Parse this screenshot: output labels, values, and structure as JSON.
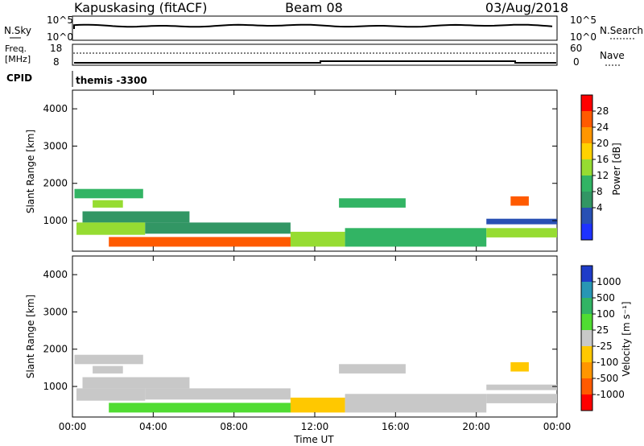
{
  "header": {
    "station": "Kapuskasing (fitACF)",
    "beam": "Beam 08",
    "date": "03/Aug/2018"
  },
  "noise_panel": {
    "left_label": "N.Sky",
    "right_label": "N.Search",
    "left_ticks": [
      "10^5",
      "10^0"
    ],
    "right_ticks": [
      "10^5",
      "10^0"
    ]
  },
  "freq_panel": {
    "left_label_1": "Freq.",
    "left_label_2": "[MHz]",
    "right_label": "Nave",
    "left_ticks": [
      "18",
      "8"
    ],
    "right_ticks": [
      "60",
      "0"
    ]
  },
  "cpid_panel": {
    "label": "CPID",
    "text": "themis -3300"
  },
  "x_axis": {
    "ticks": [
      "00:00",
      "04:00",
      "08:00",
      "12:00",
      "16:00",
      "20:00",
      "00:00"
    ],
    "label": "Time UT"
  },
  "y_axis": {
    "label": "Slant Range [km]",
    "ticks": [
      "1000",
      "2000",
      "3000",
      "4000"
    ]
  },
  "power_colorbar": {
    "title": "Power [dB]",
    "ticks": [
      "28",
      "24",
      "20",
      "16",
      "12",
      "8",
      "4"
    ],
    "colors": [
      "#ff0000",
      "#ff5a00",
      "#ff9600",
      "#ffd200",
      "#96dc32",
      "#32b464",
      "#329664",
      "#2850b4",
      "#1e32ff"
    ]
  },
  "velocity_colorbar": {
    "title": "Velocity [m s⁻¹]",
    "ticks": [
      "1000",
      "500",
      "100",
      "25",
      "-25",
      "-100",
      "-500",
      "-1000"
    ],
    "colors": [
      "#1e3cc8",
      "#2896b4",
      "#32b464",
      "#50dc32",
      "#c8c8c8",
      "#ffc800",
      "#ff9600",
      "#ff5a00",
      "#ff0000"
    ]
  },
  "chart_data": {
    "type": "heatmap",
    "x_range_hours": [
      0,
      24
    ],
    "y_range_km": [
      180,
      4500
    ],
    "panels": [
      {
        "name": "Power",
        "units": "dB",
        "scale": [
          0,
          30
        ],
        "regions": [
          {
            "t0": 0.1,
            "t1": 3.5,
            "r0": 1600,
            "r1": 1850,
            "value": 12
          },
          {
            "t0": 1.0,
            "t1": 2.5,
            "r0": 1350,
            "r1": 1550,
            "value": 16
          },
          {
            "t0": 0.5,
            "t1": 5.8,
            "r0": 950,
            "r1": 1250,
            "value": 8
          },
          {
            "t0": 0.2,
            "t1": 3.6,
            "r0": 620,
            "r1": 950,
            "value": 14
          },
          {
            "t0": 3.6,
            "t1": 10.8,
            "r0": 650,
            "r1": 950,
            "value": 8
          },
          {
            "t0": 1.8,
            "t1": 10.8,
            "r0": 300,
            "r1": 560,
            "value": 24
          },
          {
            "t0": 10.8,
            "t1": 13.5,
            "r0": 300,
            "r1": 700,
            "value": 16
          },
          {
            "t0": 13.5,
            "t1": 20.5,
            "r0": 300,
            "r1": 800,
            "value": 10
          },
          {
            "t0": 13.2,
            "t1": 16.5,
            "r0": 1350,
            "r1": 1600,
            "value": 12
          },
          {
            "t0": 20.5,
            "t1": 24.0,
            "r0": 550,
            "r1": 800,
            "value": 14
          },
          {
            "t0": 21.7,
            "t1": 22.6,
            "r0": 1400,
            "r1": 1650,
            "value": 24
          },
          {
            "t0": 20.5,
            "t1": 24.0,
            "r0": 900,
            "r1": 1050,
            "value": 6
          }
        ]
      },
      {
        "name": "Velocity",
        "units": "m/s",
        "scale": [
          -1000,
          1000
        ],
        "regions": [
          {
            "t0": 0.1,
            "t1": 3.5,
            "r0": 1600,
            "r1": 1850,
            "value": 0
          },
          {
            "t0": 1.0,
            "t1": 2.5,
            "r0": 1350,
            "r1": 1550,
            "value": 0
          },
          {
            "t0": 0.5,
            "t1": 5.8,
            "r0": 950,
            "r1": 1250,
            "value": 0
          },
          {
            "t0": 0.2,
            "t1": 3.6,
            "r0": 620,
            "r1": 950,
            "value": 0
          },
          {
            "t0": 3.6,
            "t1": 10.8,
            "r0": 650,
            "r1": 950,
            "value": 0
          },
          {
            "t0": 1.8,
            "t1": 10.8,
            "r0": 300,
            "r1": 560,
            "value": 60
          },
          {
            "t0": 10.8,
            "t1": 13.5,
            "r0": 300,
            "r1": 700,
            "value": -60
          },
          {
            "t0": 13.5,
            "t1": 20.5,
            "r0": 300,
            "r1": 800,
            "value": 0
          },
          {
            "t0": 13.2,
            "t1": 16.5,
            "r0": 1350,
            "r1": 1600,
            "value": 0
          },
          {
            "t0": 20.5,
            "t1": 24.0,
            "r0": 550,
            "r1": 800,
            "value": 0
          },
          {
            "t0": 21.7,
            "t1": 22.6,
            "r0": 1400,
            "r1": 1650,
            "value": -60
          },
          {
            "t0": 20.5,
            "t1": 24.0,
            "r0": 900,
            "r1": 1050,
            "value": 0
          }
        ]
      }
    ]
  }
}
